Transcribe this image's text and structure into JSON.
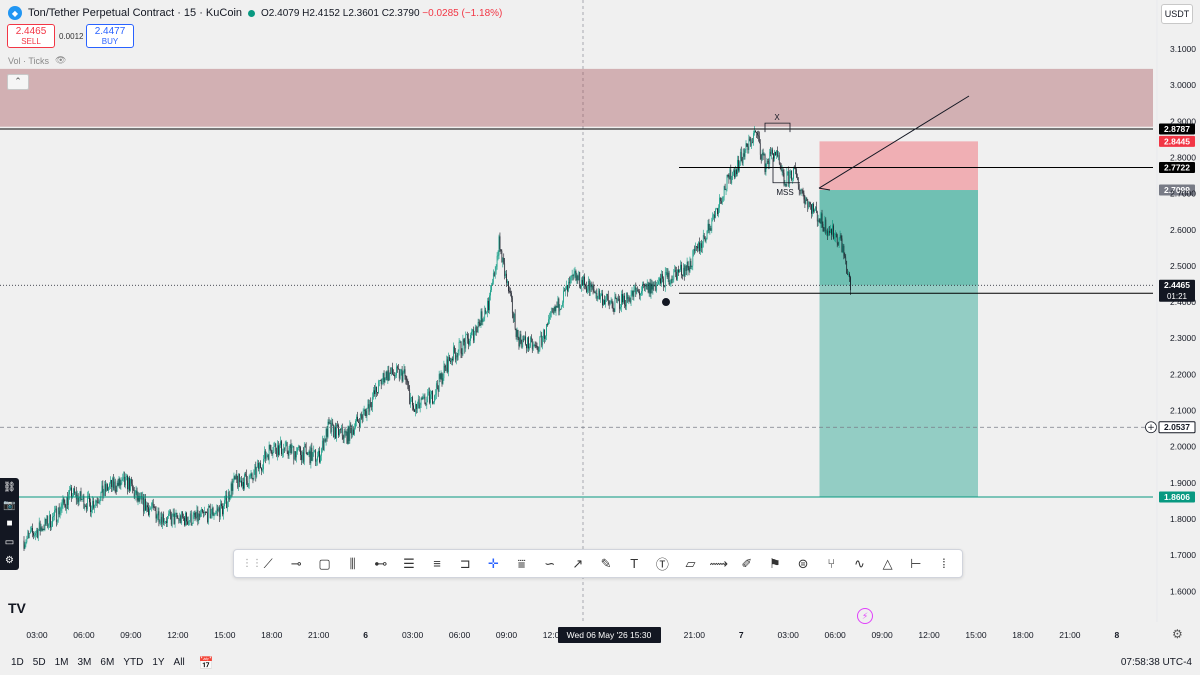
{
  "header": {
    "symbol": "Ton/Tether Perpetual Contract · 15 · KuCoin",
    "open": "O2.4079",
    "high": "H2.4152",
    "low": "L2.3601",
    "close": "C2.3790",
    "change": "−0.0285 (−1.18%)",
    "colors": {
      "accent_red": "#f23645",
      "accent_blue": "#2962ff",
      "live": "#089981"
    }
  },
  "trade": {
    "sell_price": "2.4465",
    "sell_label": "SELL",
    "spread": "0.0012",
    "buy_price": "2.4477",
    "buy_label": "BUY"
  },
  "vol_label": "Vol · Ticks",
  "currency": "USDT",
  "footer": {
    "ranges": [
      "1D",
      "5D",
      "1M",
      "3M",
      "6M",
      "YTD",
      "1Y",
      "All"
    ],
    "clock": "07:58:38 UTC-4"
  },
  "chart_data": {
    "type": "candlestick",
    "y_ticks": [
      "3.1000",
      "3.0000",
      "2.9000",
      "2.8000",
      "2.7000",
      "2.6000",
      "2.5000",
      "2.4000",
      "2.3000",
      "2.2000",
      "2.1000",
      "2.0000",
      "1.9000",
      "1.8000",
      "1.7000",
      "1.6000"
    ],
    "ylim": [
      1.515,
      3.18
    ],
    "x_ticks": [
      "03:00",
      "06:00",
      "09:00",
      "12:00",
      "15:00",
      "18:00",
      "21:00",
      "6",
      "03:00",
      "06:00",
      "09:00",
      "12:00",
      "15:00",
      "18:00",
      "21:00",
      "7",
      "03:00",
      "06:00",
      "09:00",
      "12:00",
      "15:00",
      "18:00",
      "21:00",
      "8"
    ],
    "crosshair_label": "Wed 06 May '26 15:30",
    "candle_anchors": [
      [
        0,
        1.74
      ],
      [
        3,
        1.8
      ],
      [
        5,
        1.87
      ],
      [
        7,
        1.84
      ],
      [
        9,
        1.89
      ],
      [
        11,
        1.9
      ],
      [
        12,
        1.85
      ],
      [
        15,
        1.8
      ],
      [
        18,
        1.8
      ],
      [
        21,
        1.83
      ],
      [
        22,
        1.9
      ],
      [
        24,
        1.91
      ],
      [
        26,
        2.0
      ],
      [
        28,
        1.99
      ],
      [
        31,
        1.97
      ],
      [
        32,
        2.05
      ],
      [
        34,
        2.03
      ],
      [
        36,
        2.1
      ],
      [
        38,
        2.2
      ],
      [
        40,
        2.2
      ],
      [
        41,
        2.1
      ],
      [
        43,
        2.14
      ],
      [
        45,
        2.25
      ],
      [
        47,
        2.3
      ],
      [
        49,
        2.4
      ],
      [
        50,
        2.56
      ],
      [
        51,
        2.43
      ],
      [
        52,
        2.3
      ],
      [
        54,
        2.27
      ],
      [
        56,
        2.38
      ],
      [
        58,
        2.47
      ],
      [
        60,
        2.43
      ],
      [
        62,
        2.39
      ],
      [
        64,
        2.42
      ],
      [
        66,
        2.44
      ],
      [
        68,
        2.47
      ],
      [
        70,
        2.5
      ],
      [
        72,
        2.6
      ],
      [
        74,
        2.73
      ],
      [
        76,
        2.82
      ],
      [
        77,
        2.87
      ],
      [
        78,
        2.78
      ],
      [
        79,
        2.82
      ],
      [
        80,
        2.73
      ],
      [
        81,
        2.76
      ],
      [
        82,
        2.7
      ],
      [
        84,
        2.62
      ],
      [
        86,
        2.57
      ],
      [
        87,
        2.44
      ]
    ],
    "levels": [
      {
        "price": 2.8787,
        "label": "2.8787",
        "color": "#000000",
        "style": "solid",
        "tag_bg": "#000000"
      },
      {
        "price": 2.8445,
        "label": "2.8445",
        "color": "#f23645",
        "style": "none",
        "tag_bg": "#f23645"
      },
      {
        "price": 2.7722,
        "label": "2.7722",
        "color": "#000000",
        "style": "solid",
        "tag_bg": "#000000"
      },
      {
        "price": 2.7099,
        "label": "2.7099",
        "color": "#787b86",
        "style": "none",
        "tag_bg": "#787b86"
      },
      {
        "price": 2.4465,
        "label": "2.4465",
        "sub": "01:21",
        "color": "#131722",
        "style": "dotted",
        "tag_bg": "#131722"
      },
      {
        "price": 2.0537,
        "label": "2.0537",
        "color": "#787b86",
        "style": "dashed",
        "tag_bg": "#ffffff"
      },
      {
        "price": 1.8606,
        "label": "1.8606",
        "color": "#089981",
        "style": "solid",
        "tag_bg": "#089981"
      }
    ],
    "zones": [
      {
        "name": "supply-zone",
        "from": 2.885,
        "to": 3.045,
        "color": "rgba(160,70,80,0.38)"
      }
    ],
    "position": {
      "type": "short",
      "entry": 2.7099,
      "stop": 2.8445,
      "target": 1.8606,
      "entry_index": 83
    },
    "annotations": [
      "MSS",
      "X"
    ],
    "up_color": "#089981",
    "down_color": "#131722"
  }
}
